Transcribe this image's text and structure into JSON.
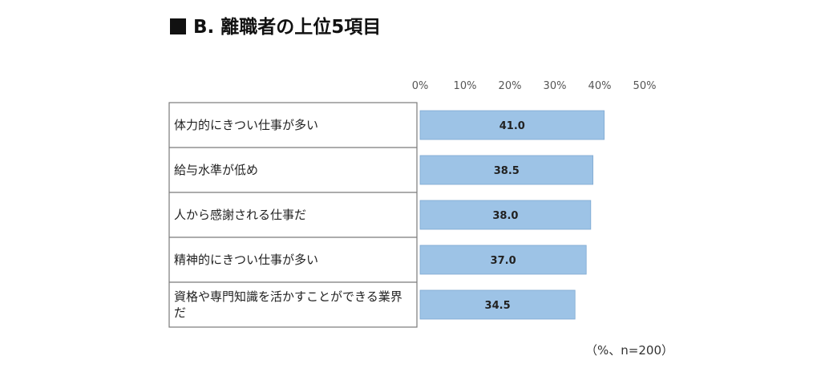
{
  "title": "B. 離職者の上位5項目",
  "note": "（%、n=200）",
  "colors": {
    "bar": "#9dc3e6",
    "bar_border": "#7fa9d1",
    "box_border": "#7a7a7a"
  },
  "chart_data": {
    "type": "bar",
    "orientation": "horizontal",
    "categories": [
      "体力的にきつい仕事が多い",
      "給与水準が低め",
      "人から感謝される仕事だ",
      "精神的にきつい仕事が多い",
      "資格や専門知識を活かすことができる業界だ"
    ],
    "values": [
      41.0,
      38.5,
      38.0,
      37.0,
      34.5
    ],
    "value_labels": [
      "41.0",
      "38.5",
      "38.0",
      "37.0",
      "34.5"
    ],
    "xlim": [
      0,
      50
    ],
    "ticks": [
      "0%",
      "10%",
      "20%",
      "30%",
      "40%",
      "50%"
    ],
    "xlabel": "",
    "ylabel": "",
    "grid": false
  }
}
